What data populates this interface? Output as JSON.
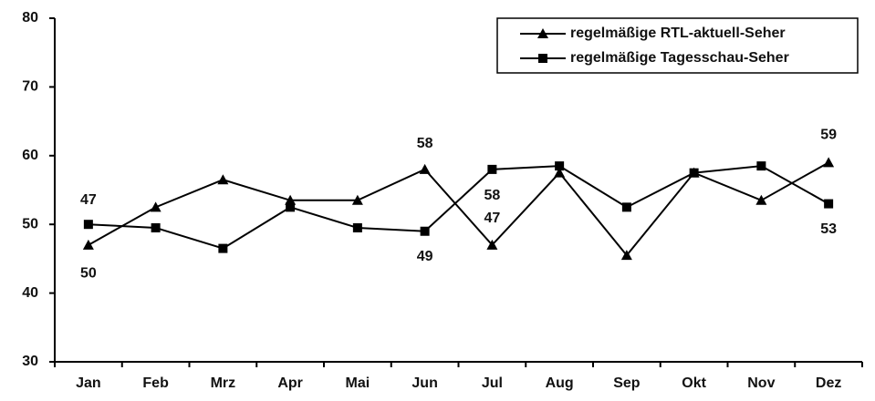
{
  "chart_data": {
    "type": "line",
    "categories": [
      "Jan",
      "Feb",
      "Mrz",
      "Apr",
      "Mai",
      "Jun",
      "Jul",
      "Aug",
      "Sep",
      "Okt",
      "Nov",
      "Dez"
    ],
    "series": [
      {
        "name": "regelmäßige RTL-aktuell-Seher",
        "color": "#000000",
        "marker": "triangle",
        "values": [
          47,
          52.5,
          56.5,
          53.5,
          53.5,
          58,
          47,
          57.5,
          45.5,
          57.5,
          53.5,
          59
        ]
      },
      {
        "name": "regelmäßige Tagesschau-Seher",
        "color": "#000000",
        "marker": "square",
        "values": [
          50,
          49.5,
          46.5,
          52.5,
          49.5,
          49,
          58,
          58.5,
          52.5,
          57.5,
          58.5,
          53
        ]
      }
    ],
    "ylim": [
      30,
      80
    ],
    "yticks": [
      30,
      40,
      50,
      60,
      70,
      80
    ],
    "grid": false,
    "legend": "top-right"
  }
}
